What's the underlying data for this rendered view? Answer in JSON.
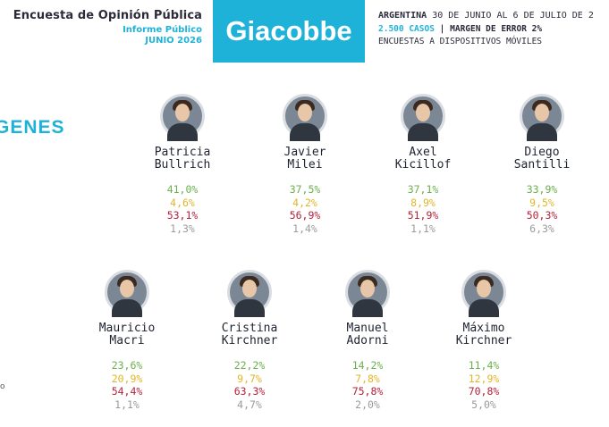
{
  "header": {
    "title": "Encuesta de Opinión Pública",
    "subtitle": "Informe Público",
    "date": "JUNIO 2026",
    "brand": "Giacobbe",
    "country": "ARGENTINA",
    "period": "30 DE JUNIO AL 6 DE JULIO DE 2",
    "cases": "2.500 CASOS",
    "separator": "|",
    "margin": "MARGEN DE ERROR 2%",
    "method": "ENCUESTAS A DISPOSITIVOS MÓVILES"
  },
  "section_title": "GENES",
  "side_note": "o",
  "colors": {
    "accent": "#1fb2d9",
    "positive": "#6ab04c",
    "regular": "#e1b626",
    "negative": "#b3223b",
    "unknown": "#9a9a9a"
  },
  "candidates": [
    {
      "first": "Patricia",
      "last": "Bullrich",
      "pos": "41,0%",
      "reg": "4,6%",
      "neg": "53,1%",
      "nsnc": "1,3%"
    },
    {
      "first": "Javier",
      "last": "Milei",
      "pos": "37,5%",
      "reg": "4,2%",
      "neg": "56,9%",
      "nsnc": "1,4%"
    },
    {
      "first": "Axel",
      "last": "Kicillof",
      "pos": "37,1%",
      "reg": "8,9%",
      "neg": "51,9%",
      "nsnc": "1,1%"
    },
    {
      "first": "Diego",
      "last": "Santilli",
      "pos": "33,9%",
      "reg": "9,5%",
      "neg": "50,3%",
      "nsnc": "6,3%"
    },
    {
      "first": "Mauricio",
      "last": "Macri",
      "pos": "23,6%",
      "reg": "20,9%",
      "neg": "54,4%",
      "nsnc": "1,1%"
    },
    {
      "first": "Cristina",
      "last": "Kirchner",
      "pos": "22,2%",
      "reg": "9,7%",
      "neg": "63,3%",
      "nsnc": "4,7%"
    },
    {
      "first": "Manuel",
      "last": "Adorni",
      "pos": "14,2%",
      "reg": "7,8%",
      "neg": "75,8%",
      "nsnc": "2,0%"
    },
    {
      "first": "Máximo",
      "last": "Kirchner",
      "pos": "11,4%",
      "reg": "12,9%",
      "neg": "70,8%",
      "nsnc": "5,0%"
    }
  ]
}
